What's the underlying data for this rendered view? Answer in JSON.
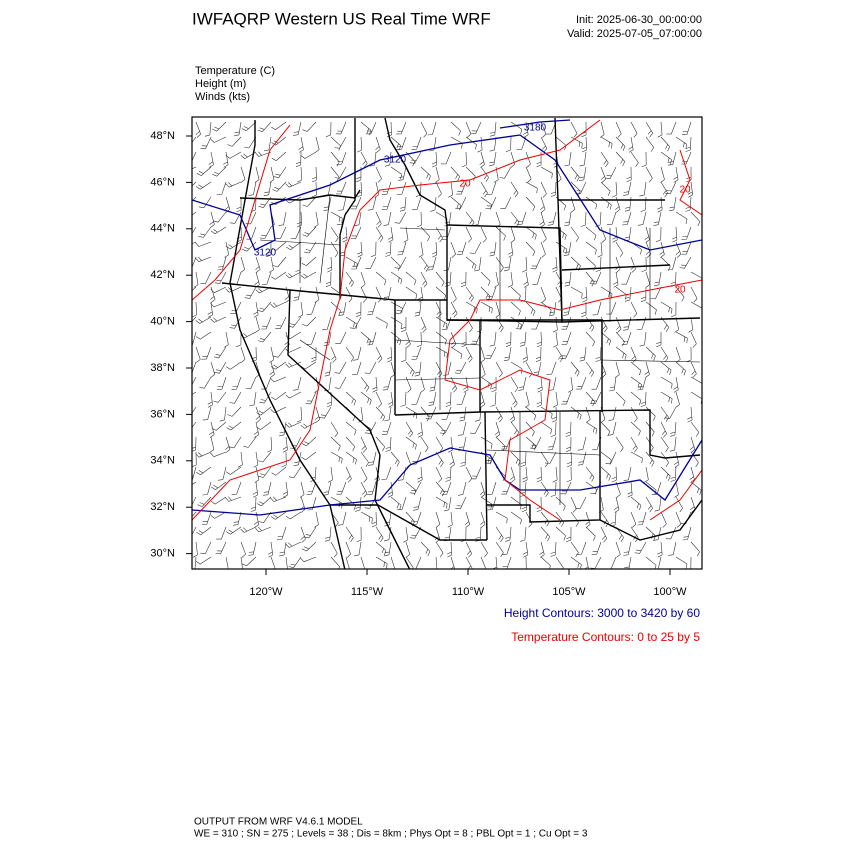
{
  "header": {
    "title": "IWFAQRP Western US Real Time WRF",
    "init": "Init: 2025-06-30_00:00:00",
    "valid": "Valid: 2025-07-05_07:00:00"
  },
  "fields": [
    "Temperature   (C)",
    "Height   (m)",
    "Winds   (kts)"
  ],
  "map": {
    "lat_ticks": [
      {
        "value": 48,
        "label": "48°N"
      },
      {
        "value": 46,
        "label": "46°N"
      },
      {
        "value": 44,
        "label": "44°N"
      },
      {
        "value": 42,
        "label": "42°N"
      },
      {
        "value": 40,
        "label": "40°N"
      },
      {
        "value": 38,
        "label": "38°N"
      },
      {
        "value": 36,
        "label": "36°N"
      },
      {
        "value": 34,
        "label": "34°N"
      },
      {
        "value": 32,
        "label": "32°N"
      },
      {
        "value": 30,
        "label": "30°N"
      }
    ],
    "lon_ticks": [
      {
        "value": -120,
        "label": "120°W"
      },
      {
        "value": -115,
        "label": "115°W"
      },
      {
        "value": -110,
        "label": "110°W"
      },
      {
        "value": -105,
        "label": "105°W"
      },
      {
        "value": -100,
        "label": "100°W"
      }
    ],
    "height_contour_labels": [
      "3180",
      "3120",
      "3120"
    ],
    "temperature_contour_labels": [
      "20",
      "20",
      "20"
    ]
  },
  "legend": {
    "height": "Height Contours: 3000 to 3420 by 60",
    "temperature": "Temperature Contours: 0 to 25 by 5"
  },
  "footer": {
    "line1": "OUTPUT FROM WRF V4.6.1 MODEL",
    "line2": "WE = 310 ; SN = 275 ; Levels = 38 ; Dis = 8km ; Phys Opt = 8 ; PBL Opt = 1 ; Cu Opt = 3"
  }
}
